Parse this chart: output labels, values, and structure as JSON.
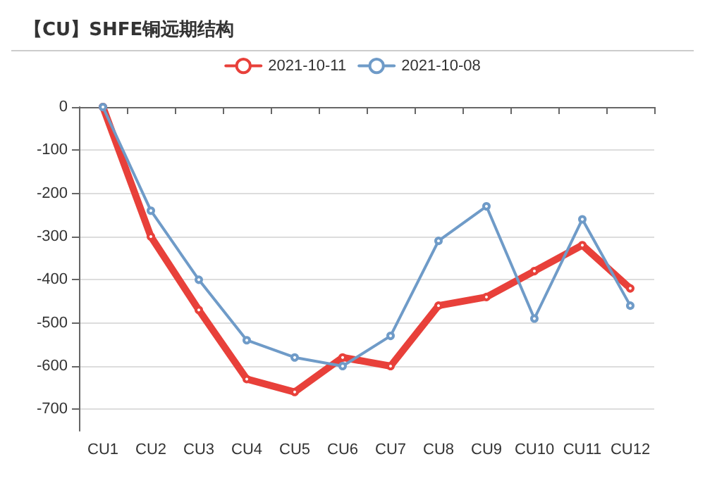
{
  "chart_data": {
    "type": "line",
    "title": "【CU】SHFE铜远期结构",
    "categories": [
      "CU1",
      "CU2",
      "CU3",
      "CU4",
      "CU5",
      "CU6",
      "CU7",
      "CU8",
      "CU9",
      "CU10",
      "CU11",
      "CU12"
    ],
    "series": [
      {
        "name": "2021-10-11",
        "color": "#e8403a",
        "values": [
          0,
          -300,
          -470,
          -630,
          -660,
          -580,
          -600,
          -460,
          -440,
          -380,
          -320,
          -420
        ]
      },
      {
        "name": "2021-10-08",
        "color": "#6f9bc8",
        "values": [
          0,
          -240,
          -400,
          -540,
          -580,
          -600,
          -530,
          -310,
          -230,
          -490,
          -260,
          -460
        ]
      }
    ],
    "ylim": [
      -750,
      0
    ],
    "yticks": [
      0,
      -100,
      -200,
      -300,
      -400,
      -500,
      -600,
      -700
    ],
    "grid": "y",
    "legend": "top",
    "marker": "circle",
    "line_style": "solid"
  }
}
